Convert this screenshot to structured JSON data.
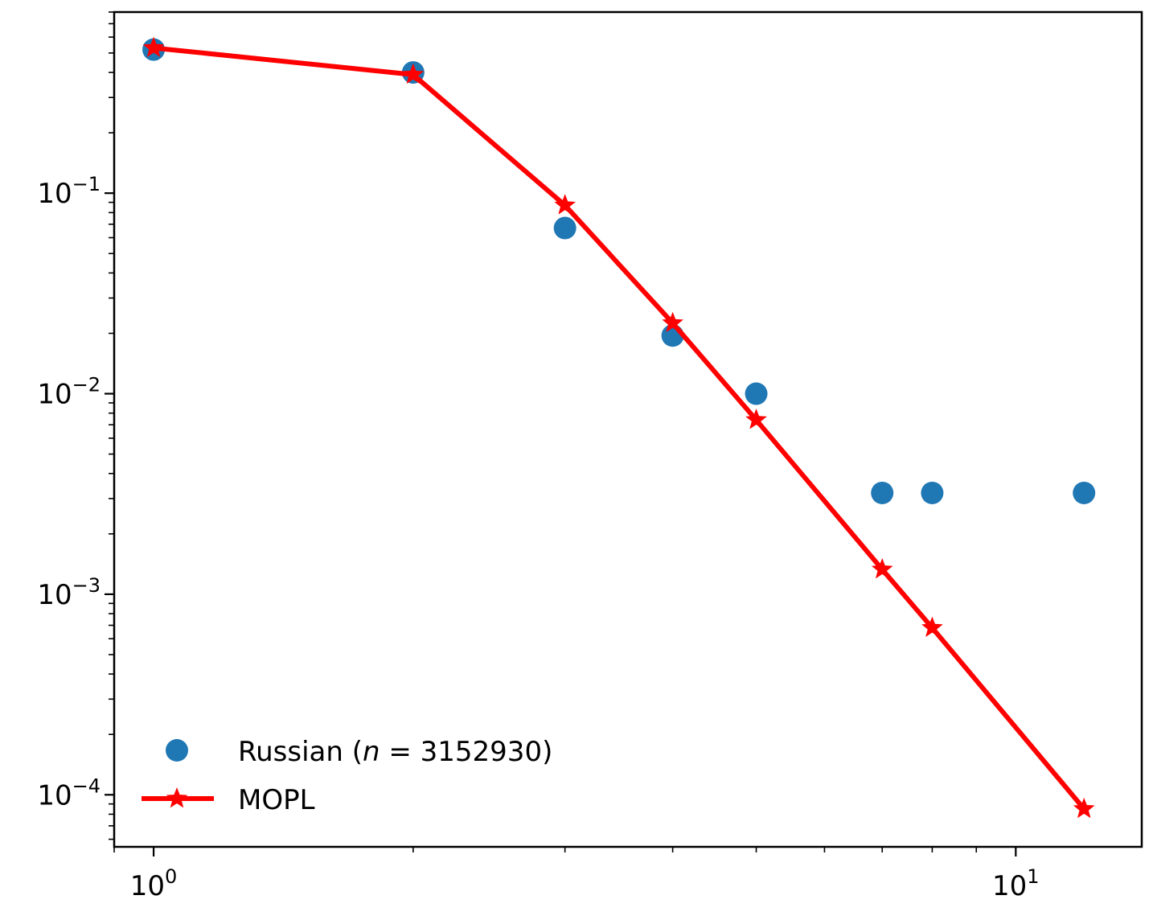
{
  "chart_data": {
    "type": "scatter",
    "xscale": "log",
    "yscale": "log",
    "xlim": [
      0.9,
      14
    ],
    "ylim": [
      5.5e-05,
      0.8
    ],
    "x_major_ticks": [
      {
        "value": 1,
        "base": "10",
        "exp": "0"
      },
      {
        "value": 10,
        "base": "10",
        "exp": "1"
      }
    ],
    "y_major_ticks": [
      {
        "value": 0.1,
        "base": "10",
        "exp": "−1"
      },
      {
        "value": 0.01,
        "base": "10",
        "exp": "−2"
      },
      {
        "value": 0.001,
        "base": "10",
        "exp": "−3"
      },
      {
        "value": 0.0001,
        "base": "10",
        "exp": "−4"
      }
    ],
    "series": [
      {
        "name": "Russian (n = 3152930)",
        "legend_parts": {
          "pre": "Russian (",
          "var": "n",
          "post": " = 3152930)"
        },
        "kind": "scatter",
        "color": "#1f77b4",
        "x": [
          1,
          2,
          3,
          4,
          5,
          7,
          8,
          12
        ],
        "y": [
          0.52,
          0.4,
          0.067,
          0.0195,
          0.01,
          0.0032,
          0.0032,
          0.0032
        ]
      },
      {
        "name": "MOPL",
        "legend_parts": {
          "pre": "MOPL",
          "var": "",
          "post": ""
        },
        "kind": "line-star",
        "color": "#ff0000",
        "x": [
          1,
          2,
          3,
          4,
          5,
          7,
          8,
          12
        ],
        "y": [
          0.53,
          0.39,
          0.087,
          0.0225,
          0.0074,
          0.00133,
          0.00068,
          8.5e-05
        ]
      }
    ],
    "legend_position": "lower-left",
    "grid": false
  }
}
